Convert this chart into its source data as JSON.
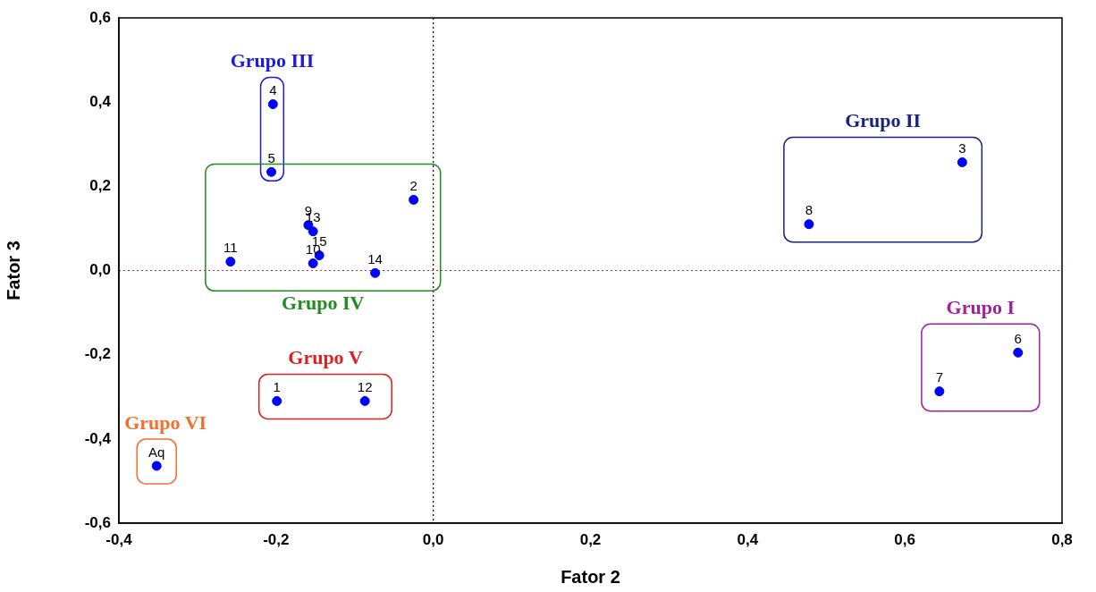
{
  "chart_data": {
    "type": "scatter",
    "xlabel": "Fator 2",
    "ylabel": "Fator 3",
    "xlim": [
      -0.4,
      0.8
    ],
    "xticks": [
      {
        "value": -0.4,
        "label": "-0,4"
      },
      {
        "value": -0.2,
        "label": "-0,2"
      },
      {
        "value": 0,
        "label": "0,0"
      },
      {
        "value": 0.2,
        "label": "0,2"
      },
      {
        "value": 0.4,
        "label": "0,4"
      },
      {
        "value": 0.6,
        "label": "0,6"
      },
      {
        "value": 0.8,
        "label": "0,8"
      }
    ],
    "ylim": [
      -0.6,
      0.6
    ],
    "yticks": [
      {
        "value": -0.6,
        "label": "-0,6"
      },
      {
        "value": -0.4,
        "label": "-0,4"
      },
      {
        "value": -0.2,
        "label": "-0,2"
      },
      {
        "value": 0,
        "label": "0,0"
      },
      {
        "value": 0.2,
        "label": "0,2"
      },
      {
        "value": 0.4,
        "label": "0,4"
      },
      {
        "value": 0.6,
        "label": "0,6"
      }
    ],
    "grid": false,
    "legend": false,
    "marker": "circle",
    "ref_lines": [
      {
        "axis": "x",
        "value": 0,
        "color": "#000000",
        "line_style": "dotted"
      },
      {
        "axis": "y",
        "value": 0,
        "color": "#c03030",
        "line_style": "dotted"
      }
    ],
    "annotations": [
      {
        "text": "6",
        "x": 0.744,
        "y": -0.195
      },
      {
        "text": "7",
        "x": 0.644,
        "y": -0.287
      },
      {
        "text": "3",
        "x": 0.673,
        "y": 0.257
      },
      {
        "text": "8",
        "x": 0.478,
        "y": 0.11
      },
      {
        "text": "4",
        "x": -0.204,
        "y": 0.395
      },
      {
        "text": "5",
        "x": -0.206,
        "y": 0.234
      },
      {
        "text": "2",
        "x": -0.025,
        "y": 0.168
      },
      {
        "text": "9",
        "x": -0.159,
        "y": 0.108
      },
      {
        "text": "13",
        "x": -0.153,
        "y": 0.093
      },
      {
        "text": "15",
        "x": -0.145,
        "y": 0.036
      },
      {
        "text": "10",
        "x": -0.153,
        "y": 0.017
      },
      {
        "text": "11",
        "x": -0.258,
        "y": 0.021
      },
      {
        "text": "14",
        "x": -0.074,
        "y": -0.006
      },
      {
        "text": "1",
        "x": -0.199,
        "y": -0.31
      },
      {
        "text": "12",
        "x": -0.087,
        "y": -0.31
      },
      {
        "text": "Aq",
        "x": -0.352,
        "y": -0.464
      }
    ],
    "series": [
      {
        "name": "Grupo I",
        "color": "#0000ff",
        "x": [
          0.744,
          0.644
        ],
        "values": [
          -0.195,
          -0.287
        ]
      },
      {
        "name": "Grupo II",
        "color": "#0000ff",
        "x": [
          0.673,
          0.478
        ],
        "values": [
          0.257,
          0.11
        ]
      },
      {
        "name": "Grupo III",
        "color": "#0000ff",
        "x": [
          -0.204,
          -0.206
        ],
        "values": [
          0.395,
          0.234
        ]
      },
      {
        "name": "Grupo IV",
        "color": "#0000ff",
        "x": [
          -0.025,
          -0.159,
          -0.153,
          -0.145,
          -0.153,
          -0.258,
          -0.074
        ],
        "values": [
          0.168,
          0.108,
          0.093,
          0.036,
          0.017,
          0.021,
          -0.006
        ]
      },
      {
        "name": "Grupo V",
        "color": "#0000ff",
        "x": [
          -0.199,
          -0.087
        ],
        "values": [
          -0.31,
          -0.31
        ]
      },
      {
        "name": "Grupo VI",
        "color": "#0000ff",
        "x": [
          -0.352
        ],
        "values": [
          -0.464
        ]
      }
    ]
  }
}
